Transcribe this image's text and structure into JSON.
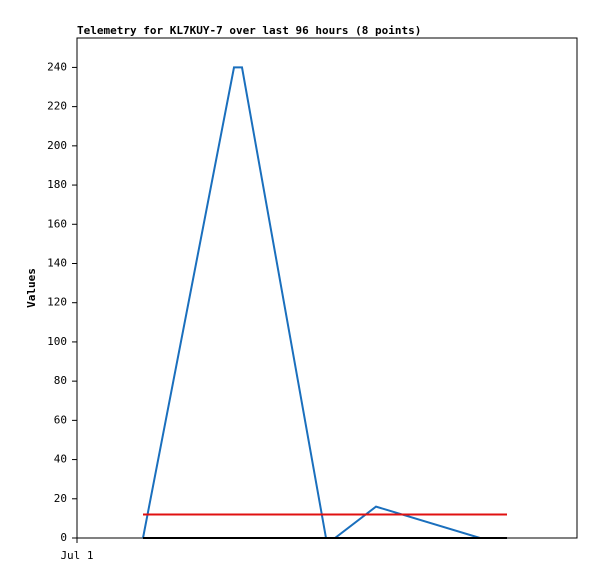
{
  "chart_data": {
    "type": "line",
    "title": "Telemetry for KL7KUY-7 over last 96 hours (8 points)",
    "y_label": "Values",
    "x": [
      13.2,
      31.4,
      33,
      49.8,
      51.6,
      59.8,
      80.6,
      86
    ],
    "xlim": [
      0,
      100
    ],
    "xticks": [
      {
        "value": 0,
        "label": "Jul 1"
      }
    ],
    "ylim": [
      0,
      255
    ],
    "yticks": [
      0,
      20,
      40,
      60,
      80,
      100,
      120,
      140,
      160,
      180,
      200,
      220,
      240
    ],
    "series": [
      {
        "color": "#1a6fbd",
        "values": [
          0,
          240,
          240,
          0,
          0,
          16,
          0,
          0
        ]
      },
      {
        "color": "#e01010",
        "values": [
          12,
          12,
          12,
          12,
          12,
          12,
          12,
          12
        ]
      },
      {
        "color": "#000000",
        "values": [
          0,
          0,
          0,
          0,
          0,
          0,
          0,
          0
        ]
      }
    ]
  }
}
